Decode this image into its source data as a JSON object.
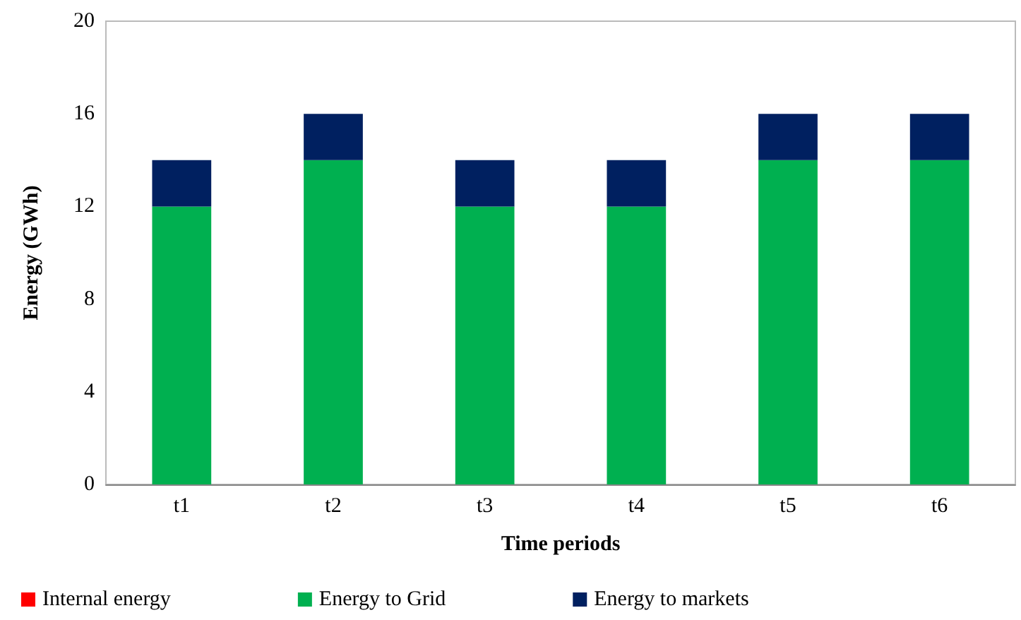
{
  "chart_data": {
    "type": "bar",
    "stacked": true,
    "xlabel": "Time periods",
    "ylabel": "Energy (GWh)",
    "categories": [
      "t1",
      "t2",
      "t3",
      "t4",
      "t5",
      "t6"
    ],
    "series": [
      {
        "name": "Internal energy",
        "color": "#ff0000",
        "values": [
          0,
          0,
          0,
          0,
          0,
          0
        ]
      },
      {
        "name": "Energy to Grid",
        "color": "#00b050",
        "values": [
          12,
          14,
          12,
          12,
          14,
          14
        ]
      },
      {
        "name": "Energy to markets",
        "color": "#002060",
        "values": [
          2,
          2,
          2,
          2,
          2,
          2
        ]
      }
    ],
    "ylim": [
      0,
      20
    ],
    "yticks": [
      0,
      4,
      8,
      12,
      16,
      20
    ],
    "grid": false,
    "legend": "bottom"
  }
}
